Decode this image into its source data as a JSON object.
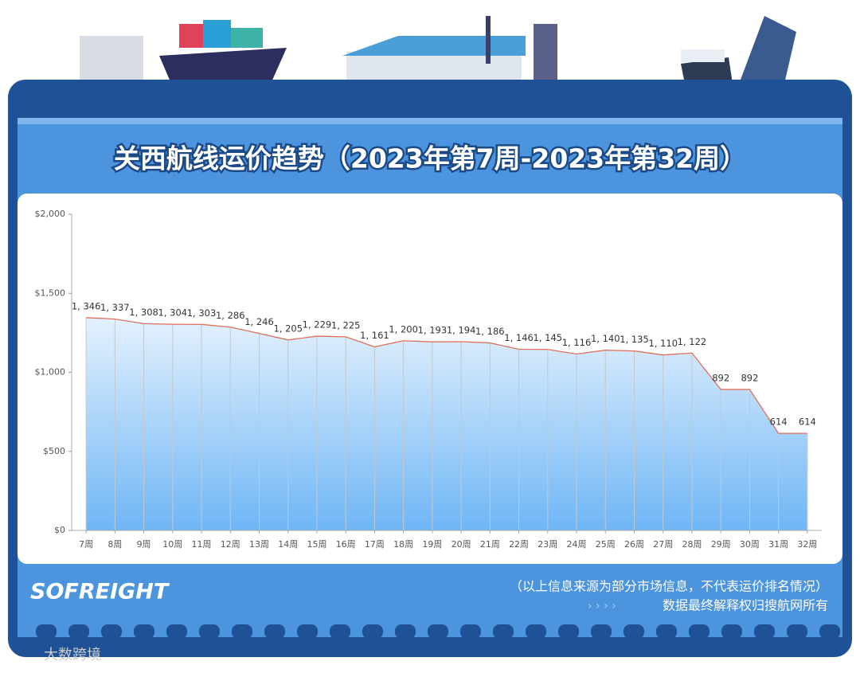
{
  "chart_data": {
    "type": "area",
    "title": "关西航线运价趋势（2023年第7周-2023年第32周）",
    "categories": [
      "7周",
      "8周",
      "9周",
      "10周",
      "11周",
      "12周",
      "13周",
      "14周",
      "15周",
      "16周",
      "17周",
      "18周",
      "19周",
      "20周",
      "21周",
      "22周",
      "23周",
      "24周",
      "25周",
      "26周",
      "27周",
      "28周",
      "29周",
      "30周",
      "31周",
      "32周"
    ],
    "values": [
      1346,
      1337,
      1308,
      1304,
      1303,
      1286,
      1246,
      1205,
      1229,
      1225,
      1161,
      1200,
      1193,
      1194,
      1186,
      1146,
      1145,
      1116,
      1140,
      1135,
      1110,
      1122,
      892,
      892,
      614,
      614
    ],
    "value_labels": [
      "1, 346",
      "1, 337",
      "1, 308",
      "1, 304",
      "1, 303",
      "1, 286",
      "1, 246",
      "1, 205",
      "1, 229",
      "1, 225",
      "1, 161",
      "1, 200",
      "1, 193",
      "1, 194",
      "1, 186",
      "1, 146",
      "1, 145",
      "1, 116",
      "1, 140",
      "1, 135",
      "1, 110",
      "1, 122",
      "892",
      "892",
      "614",
      "614"
    ],
    "color": "#e0705a",
    "ylim": [
      0,
      2000
    ],
    "yticks": [
      {
        "value": 0,
        "label": "$0"
      },
      {
        "value": 500,
        "label": "$500"
      },
      {
        "value": 1000,
        "label": "$1,000"
      },
      {
        "value": 1500,
        "label": "$1,500"
      },
      {
        "value": 2000,
        "label": "$2,000"
      }
    ]
  },
  "footer": {
    "brand": "SOFREIGHT",
    "note": "（以上信息来源为部分市场信息，不代表运价排名情况）",
    "copyright": "数据最终解释权归搜航网所有",
    "watermark": "大数跨境"
  }
}
